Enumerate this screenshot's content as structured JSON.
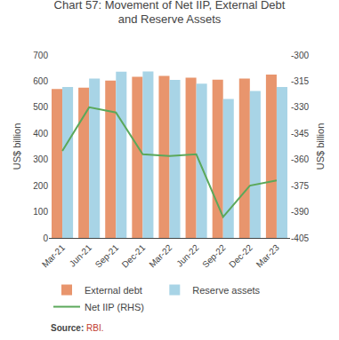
{
  "chart_data": {
    "type": "bar",
    "title": "Chart 57: Movement of Net IIP, External Debt\nand Reserve Assets",
    "categories": [
      "Mar-21",
      "Jun-21",
      "Sep-21",
      "Dec-21",
      "Mar-22",
      "Jun-22",
      "Sep-22",
      "Dec-22",
      "Mar-23"
    ],
    "series": [
      {
        "name": "External debt",
        "type": "bar",
        "color": "#E8956D",
        "values": [
          570,
          575,
          602,
          617,
          620,
          613,
          606,
          610,
          625
        ]
      },
      {
        "name": "Reserve assets",
        "type": "bar",
        "color": "#A8D4E6",
        "values": [
          578,
          610,
          636,
          637,
          605,
          590,
          532,
          562,
          578
        ]
      },
      {
        "name": "Net IIP (RHS)",
        "type": "line",
        "axis": "y2",
        "color": "#5BA85A",
        "values": [
          -355,
          -330,
          -333,
          -357,
          -358,
          -357,
          -393,
          -375,
          -372
        ]
      }
    ],
    "ylabel": "US$ billion",
    "y2label": "US$ billion",
    "ylim": [
      0,
      700
    ],
    "yticks": [
      0,
      100,
      200,
      300,
      400,
      500,
      600,
      700
    ],
    "y2lim": [
      -405,
      -300
    ],
    "y2ticks": [
      -405,
      -390,
      -375,
      -360,
      -345,
      -330,
      -315,
      -300
    ],
    "grid": false,
    "legend": "bottom",
    "annotations": [
      {
        "text": "Source:"
      },
      {
        "text": " RBI.",
        "color": "#C0392B"
      }
    ]
  }
}
